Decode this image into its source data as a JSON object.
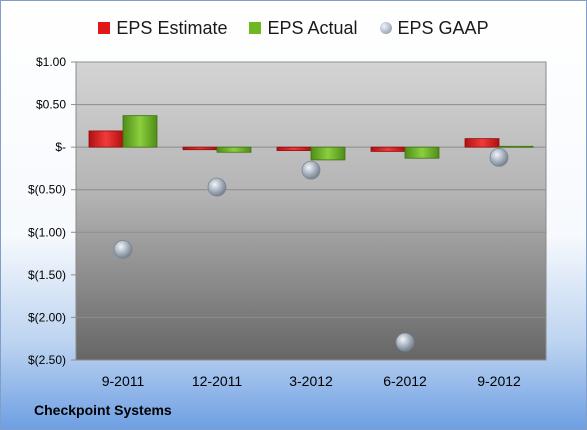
{
  "chart_data": {
    "type": "bar",
    "categories": [
      "9-2011",
      "12-2011",
      "3-2012",
      "6-2012",
      "9-2012"
    ],
    "series": [
      {
        "name": "EPS Estimate",
        "kind": "bar",
        "color": "#e01818",
        "values": [
          0.19,
          -0.03,
          -0.04,
          -0.05,
          0.1
        ]
      },
      {
        "name": "EPS Actual",
        "kind": "bar",
        "color": "#6fb624",
        "values": [
          0.37,
          -0.06,
          -0.15,
          -0.13,
          0.01
        ]
      },
      {
        "name": "EPS GAAP",
        "kind": "marker",
        "color": "#a8b4c4",
        "values": [
          -1.2,
          -0.47,
          -0.27,
          -2.29,
          -0.12
        ]
      }
    ],
    "y_ticks": [
      {
        "value": 1.0,
        "label": "$1.00"
      },
      {
        "value": 0.5,
        "label": "$0.50"
      },
      {
        "value": 0,
        "label": "$-"
      },
      {
        "value": -0.5,
        "label": "$(0.50)"
      },
      {
        "value": -1.0,
        "label": "$(1.00)"
      },
      {
        "value": -1.5,
        "label": "$(1.50)"
      },
      {
        "value": -2.0,
        "label": "$(2.00)"
      },
      {
        "value": -2.5,
        "label": "$(2.50)"
      }
    ],
    "ylim": [
      -2.5,
      1.0
    ],
    "grid": true,
    "legend_position": "top"
  },
  "company": "Checkpoint Systems"
}
